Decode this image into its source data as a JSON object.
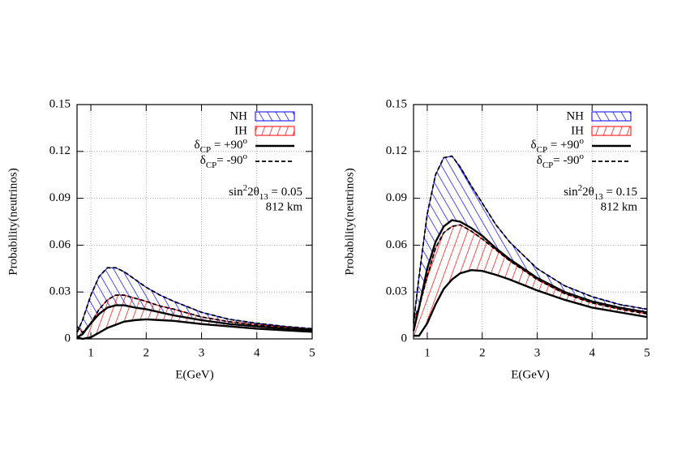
{
  "chart_data": [
    {
      "type": "band",
      "xlabel": "E(GeV)",
      "ylabel": "Probability(neutrinos)",
      "annotation": {
        "func": "sin",
        "power": "2",
        "angle": "2θ",
        "index": "13",
        "value": " = 0.05",
        "baseline": "812 km"
      },
      "xlim": [
        0.75,
        5
      ],
      "ylim": [
        0,
        0.15
      ],
      "xticks": [
        1,
        2,
        3,
        4,
        5
      ],
      "yticks": [
        0,
        0.03,
        0.06,
        0.09,
        0.12,
        0.15
      ],
      "grid": true,
      "x": [
        0.75,
        0.85,
        1,
        1.15,
        1.3,
        1.45,
        1.6,
        1.8,
        2,
        2.25,
        2.5,
        3,
        3.5,
        4,
        4.5,
        5
      ],
      "series": [
        {
          "name": "NH",
          "color": "#0000ff",
          "upper": [
            0.004,
            0.012,
            0.028,
            0.04,
            0.0455,
            0.0455,
            0.043,
            0.038,
            0.033,
            0.028,
            0.024,
            0.017,
            0.0125,
            0.01,
            0.008,
            0.0065
          ],
          "lower": [
            0.001,
            0.003,
            0.01,
            0.016,
            0.02,
            0.0215,
            0.0215,
            0.02,
            0.019,
            0.017,
            0.015,
            0.012,
            0.0095,
            0.008,
            0.0065,
            0.0055
          ]
        },
        {
          "name": "IH",
          "color": "#ff0000",
          "upper": [
            0.008,
            0.004,
            0.01,
            0.019,
            0.025,
            0.028,
            0.028,
            0.026,
            0.024,
            0.021,
            0.019,
            0.014,
            0.011,
            0.009,
            0.0075,
            0.006
          ],
          "lower": [
            0.001,
            0,
            0.001,
            0.004,
            0.007,
            0.009,
            0.011,
            0.012,
            0.0125,
            0.012,
            0.0115,
            0.0095,
            0.008,
            0.0065,
            0.0055,
            0.0045
          ]
        }
      ],
      "line_legend": [
        {
          "symbol": "δ",
          "sub": "CP",
          "main": " = +90",
          "sup": "o",
          "dashed": false
        },
        {
          "symbol": "δ",
          "sub": "CP",
          "main": "= -90",
          "sup": "o",
          "dashed": true
        }
      ]
    },
    {
      "type": "band",
      "xlabel": "E(GeV)",
      "ylabel": "Probability(neutrinos)",
      "annotation": {
        "func": "sin",
        "power": "2",
        "angle": "2θ",
        "index": "13",
        "value": " = 0.15",
        "baseline": "812 km"
      },
      "xlim": [
        0.75,
        5
      ],
      "ylim": [
        0,
        0.15
      ],
      "xticks": [
        1,
        2,
        3,
        4,
        5
      ],
      "yticks": [
        0,
        0.03,
        0.06,
        0.09,
        0.12,
        0.15
      ],
      "grid": true,
      "x": [
        0.75,
        0.85,
        1,
        1.15,
        1.3,
        1.45,
        1.6,
        1.8,
        2,
        2.25,
        2.5,
        3,
        3.5,
        4,
        4.5,
        5
      ],
      "series": [
        {
          "name": "NH",
          "color": "#0000ff",
          "upper": [
            0.01,
            0.04,
            0.08,
            0.105,
            0.116,
            0.117,
            0.11,
            0.098,
            0.087,
            0.073,
            0.062,
            0.045,
            0.034,
            0.027,
            0.022,
            0.019
          ],
          "lower": [
            0.005,
            0.02,
            0.045,
            0.062,
            0.072,
            0.076,
            0.075,
            0.071,
            0.066,
            0.058,
            0.051,
            0.039,
            0.03,
            0.024,
            0.02,
            0.017
          ]
        },
        {
          "name": "IH",
          "color": "#ff0000",
          "upper": [
            0.012,
            0.02,
            0.04,
            0.058,
            0.068,
            0.072,
            0.073,
            0.069,
            0.064,
            0.057,
            0.05,
            0.038,
            0.029,
            0.023,
            0.019,
            0.016
          ],
          "lower": [
            0.002,
            0.002,
            0.01,
            0.022,
            0.032,
            0.038,
            0.042,
            0.044,
            0.0435,
            0.041,
            0.038,
            0.031,
            0.025,
            0.02,
            0.017,
            0.014
          ]
        }
      ],
      "line_legend": [
        {
          "symbol": "δ",
          "sub": "CP",
          "main": " = +90",
          "sup": "o",
          "dashed": false
        },
        {
          "symbol": "δ",
          "sub": "CP",
          "main": "= -90",
          "sup": "o",
          "dashed": true
        }
      ]
    }
  ]
}
